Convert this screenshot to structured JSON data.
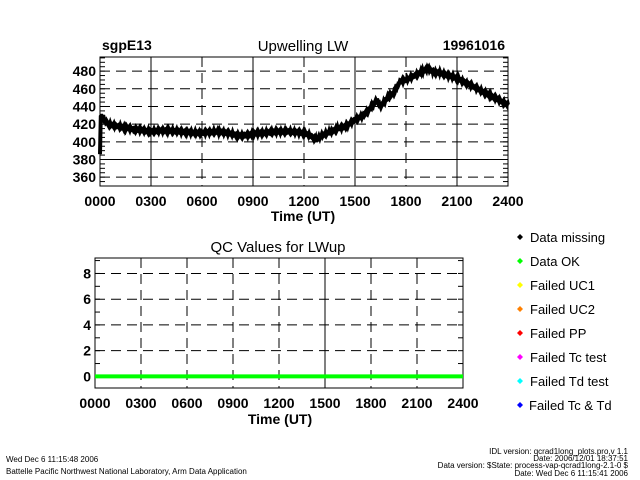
{
  "chart_data": [
    {
      "type": "line",
      "title": "Upwelling LW",
      "site": "sgpE13",
      "date": "19961016",
      "xlabel": "Time (UT)",
      "ylabel": "",
      "xlim": [
        0,
        24
      ],
      "ylim": [
        350,
        496
      ],
      "xticks": [
        "0000",
        "0300",
        "0600",
        "0900",
        "1200",
        "1500",
        "1800",
        "2100",
        "2400"
      ],
      "yticks": [
        360,
        380,
        400,
        420,
        440,
        460,
        480
      ],
      "grid": true,
      "series": [
        {
          "name": "LWup",
          "color": "#000000",
          "x": [
            0,
            0.05,
            0.1,
            0.3,
            0.5,
            1,
            1.5,
            2,
            3,
            4,
            5,
            6,
            7,
            8,
            8.5,
            9,
            10,
            11,
            12,
            12.5,
            12.7,
            13,
            13.5,
            14,
            14.5,
            15,
            15.5,
            16,
            16.3,
            16.5,
            17,
            17.3,
            17.6,
            18,
            18.5,
            19,
            19.3,
            19.6,
            20,
            21,
            22,
            23,
            24
          ],
          "y": [
            386,
            428,
            428,
            424,
            420,
            418,
            416,
            414,
            412,
            413,
            411,
            410,
            412,
            408,
            407,
            409,
            411,
            412,
            410,
            406,
            402,
            407,
            411,
            415,
            418,
            425,
            430,
            440,
            448,
            440,
            452,
            455,
            468,
            470,
            475,
            480,
            483,
            479,
            478,
            472,
            462,
            452,
            442
          ]
        }
      ]
    },
    {
      "type": "line",
      "title": "QC Values for LWup",
      "xlabel": "Time (UT)",
      "xlim": [
        0,
        24
      ],
      "ylim": [
        -0.9,
        9.2
      ],
      "xticks": [
        "0000",
        "0300",
        "0600",
        "0900",
        "1200",
        "1500",
        "1800",
        "2100",
        "2400"
      ],
      "yticks": [
        0,
        2,
        4,
        6,
        8
      ],
      "grid": true,
      "series": [
        {
          "name": "QC",
          "color": "#00ff00",
          "x": [
            0,
            24
          ],
          "y": [
            0,
            0
          ]
        }
      ],
      "legend": [
        {
          "label": "Data missing",
          "color": "#000000"
        },
        {
          "label": "Data OK",
          "color": "#00ff00"
        },
        {
          "label": "Failed UC1",
          "color": "#ffff00"
        },
        {
          "label": "Failed UC2",
          "color": "#ff8000"
        },
        {
          "label": "Failed PP",
          "color": "#ff0000"
        },
        {
          "label": "Failed Tc test",
          "color": "#ff00ff"
        },
        {
          "label": "Failed Td test",
          "color": "#00ffff"
        },
        {
          "label": "Failed Tc & Td",
          "color": "#0000ff"
        }
      ]
    }
  ],
  "footer": {
    "timestamp": "Wed Dec  6 11:15:48 2006",
    "lab": "Battelle Pacific Northwest National Laboratory, Arm Data Application",
    "idl_version": "IDL version: qcrad1long_plots.pro,v 1.1",
    "idl_date": "Date: 2006/12/01 18:37:51",
    "data_version": "Data version: $State: process-vap-qcrad1long-2.1-0 $",
    "data_date": "Date: Wed Dec  6 11:15:41 2006"
  }
}
